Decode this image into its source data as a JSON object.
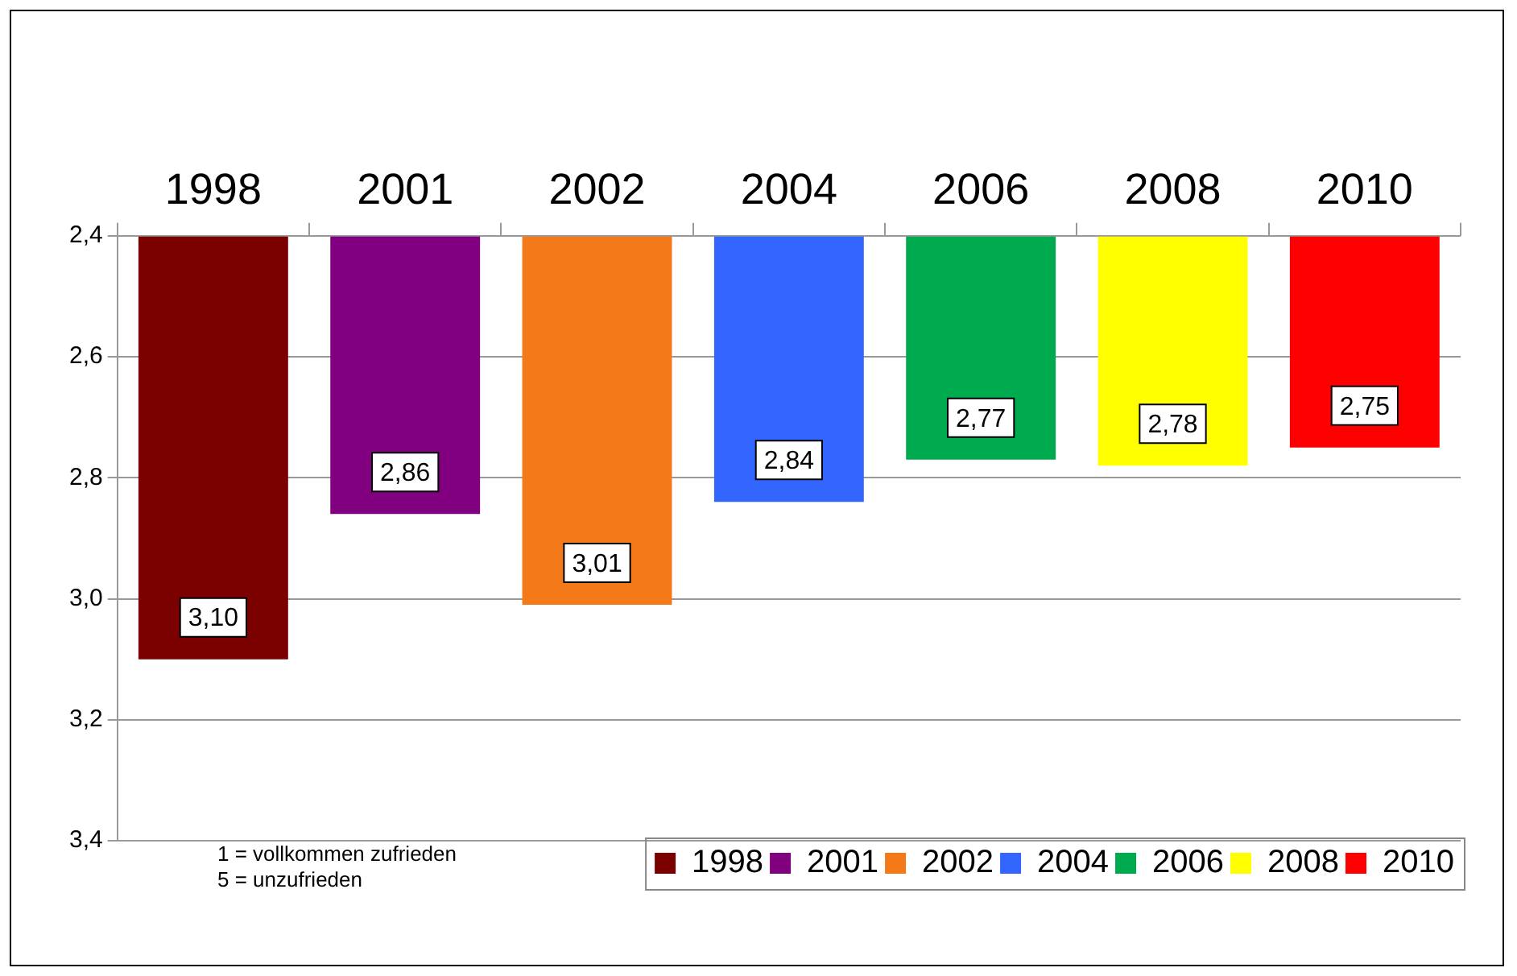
{
  "chart_data": {
    "type": "bar",
    "categories": [
      "1998",
      "2001",
      "2002",
      "2004",
      "2006",
      "2008",
      "2010"
    ],
    "series": [
      {
        "name": "1998",
        "color": "#7b0000",
        "values": [
          3.1,
          null,
          null,
          null,
          null,
          null,
          null
        ],
        "value_labels": [
          "3,10",
          null,
          null,
          null,
          null,
          null,
          null
        ]
      },
      {
        "name": "2001",
        "color": "#800080",
        "values": [
          null,
          2.86,
          null,
          null,
          null,
          null,
          null
        ],
        "value_labels": [
          null,
          "2,86",
          null,
          null,
          null,
          null,
          null
        ]
      },
      {
        "name": "2002",
        "color": "#f47a19",
        "values": [
          null,
          null,
          3.01,
          null,
          null,
          null,
          null
        ],
        "value_labels": [
          null,
          null,
          "3,01",
          null,
          null,
          null,
          null
        ]
      },
      {
        "name": "2004",
        "color": "#3366ff",
        "values": [
          null,
          null,
          null,
          2.84,
          null,
          null,
          null
        ],
        "value_labels": [
          null,
          null,
          null,
          "2,84",
          null,
          null,
          null
        ]
      },
      {
        "name": "2006",
        "color": "#00aa4f",
        "values": [
          null,
          null,
          null,
          null,
          2.77,
          null,
          null
        ],
        "value_labels": [
          null,
          null,
          null,
          null,
          "2,77",
          null,
          null
        ]
      },
      {
        "name": "2008",
        "color": "#ffff00",
        "values": [
          null,
          null,
          null,
          null,
          null,
          2.78,
          null
        ],
        "value_labels": [
          null,
          null,
          null,
          null,
          null,
          "2,78",
          null
        ]
      },
      {
        "name": "2010",
        "color": "#ff0000",
        "values": [
          null,
          null,
          null,
          null,
          null,
          null,
          2.75
        ],
        "value_labels": [
          null,
          null,
          null,
          null,
          null,
          null,
          "2,75"
        ]
      }
    ],
    "ylim": [
      3.4,
      2.4
    ],
    "yticks": [
      {
        "value": 2.4,
        "label": "2,4"
      },
      {
        "value": 2.6,
        "label": "2,6"
      },
      {
        "value": 2.8,
        "label": "2,8"
      },
      {
        "value": 3.0,
        "label": "3,0"
      },
      {
        "value": 3.2,
        "label": "3,2"
      },
      {
        "value": 3.4,
        "label": "3,4"
      }
    ],
    "grid": "y",
    "legend": "bottom",
    "annotations": [
      "1 = vollkommen zufrieden",
      "5 = unzufrieden"
    ]
  }
}
